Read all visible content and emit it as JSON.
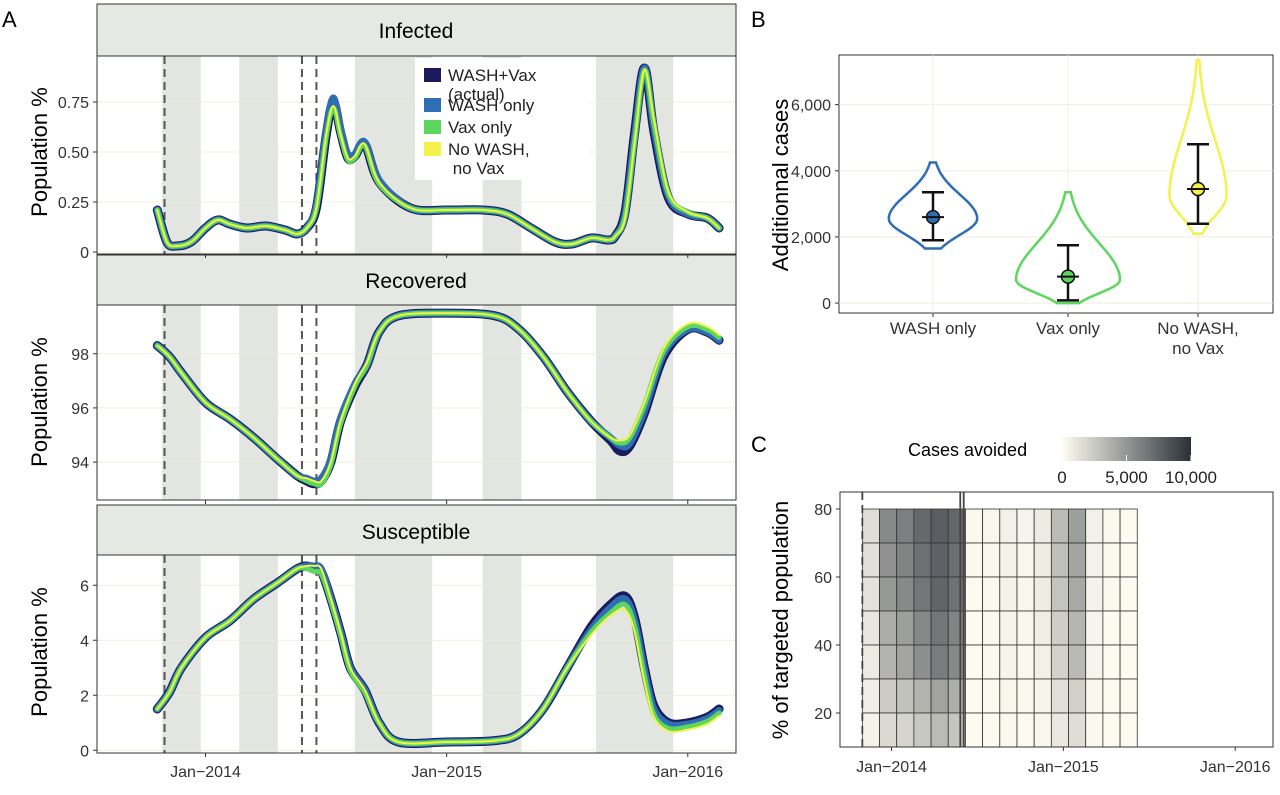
{
  "panel_letters": {
    "a": "A",
    "b": "B",
    "c": "C"
  },
  "colors": {
    "wash_vax": "#1a1a5c",
    "wash_only": "#2f6db5",
    "vax_only": "#5cd65c",
    "no_wash_no_vax": "#f2f24a",
    "season_shade": "#e3e5e0",
    "strip_fill": "#e6e8e3",
    "heat_low": "#fffdf2",
    "heat_high": "#2b3038"
  },
  "chart_data": [
    {
      "type": "line",
      "panel": "A",
      "facet": "Infected",
      "ylabel": "Population %",
      "xlabel": "",
      "x_ticks": [
        "Jan−2014",
        "Jan−2015",
        "Jan−2016"
      ],
      "x_tick_values": [
        2014.0,
        2015.0,
        2016.0
      ],
      "xlim": [
        2013.55,
        2016.2
      ],
      "ylim": [
        -0.01,
        0.98
      ],
      "y_ticks": [
        0,
        0.25,
        0.5,
        0.75
      ],
      "y_tick_labels": [
        "0",
        "0.25",
        "0.50",
        "0.75"
      ],
      "shaded_periods": [
        [
          2013.82,
          2013.98
        ],
        [
          2014.14,
          2014.3
        ],
        [
          2014.62,
          2014.94
        ],
        [
          2015.15,
          2015.31
        ],
        [
          2015.62,
          2015.94
        ]
      ],
      "intervention_lines": [
        2013.83,
        2014.4,
        2014.46
      ],
      "legend": {
        "position": "top-right",
        "entries": [
          {
            "label": "WASH+Vax\n(actual)",
            "color_key": "wash_vax"
          },
          {
            "label": "WASH only",
            "color_key": "wash_only"
          },
          {
            "label": "Vax only",
            "color_key": "vax_only"
          },
          {
            "label": "No WASH,\n no Vax",
            "color_key": "no_wash_no_vax"
          }
        ]
      },
      "x": [
        2013.8,
        2013.84,
        2013.88,
        2013.94,
        2014.0,
        2014.05,
        2014.1,
        2014.17,
        2014.25,
        2014.33,
        2014.38,
        2014.42,
        2014.46,
        2014.5,
        2014.53,
        2014.56,
        2014.59,
        2014.62,
        2014.66,
        2014.72,
        2014.85,
        2015.0,
        2015.15,
        2015.25,
        2015.35,
        2015.45,
        2015.52,
        2015.6,
        2015.67,
        2015.7,
        2015.74,
        2015.78,
        2015.82,
        2015.86,
        2015.92,
        2016.0,
        2016.08,
        2016.13
      ],
      "series": [
        {
          "name": "WASH+Vax\n(actual)",
          "values": [
            0.21,
            0.05,
            0.03,
            0.05,
            0.12,
            0.16,
            0.14,
            0.12,
            0.13,
            0.11,
            0.09,
            0.12,
            0.22,
            0.58,
            0.75,
            0.6,
            0.47,
            0.48,
            0.54,
            0.35,
            0.22,
            0.21,
            0.21,
            0.19,
            0.12,
            0.05,
            0.04,
            0.07,
            0.06,
            0.08,
            0.2,
            0.6,
            0.92,
            0.6,
            0.27,
            0.19,
            0.17,
            0.12
          ]
        },
        {
          "name": "WASH only",
          "values": [
            0.21,
            0.05,
            0.03,
            0.05,
            0.12,
            0.16,
            0.14,
            0.12,
            0.13,
            0.11,
            0.09,
            0.12,
            0.23,
            0.6,
            0.77,
            0.62,
            0.49,
            0.49,
            0.55,
            0.36,
            0.22,
            0.21,
            0.21,
            0.19,
            0.12,
            0.05,
            0.04,
            0.07,
            0.06,
            0.08,
            0.19,
            0.58,
            0.92,
            0.62,
            0.28,
            0.19,
            0.17,
            0.12
          ]
        },
        {
          "name": "Vax only",
          "values": [
            0.21,
            0.05,
            0.03,
            0.05,
            0.12,
            0.16,
            0.14,
            0.12,
            0.13,
            0.11,
            0.09,
            0.12,
            0.22,
            0.57,
            0.72,
            0.58,
            0.46,
            0.47,
            0.53,
            0.34,
            0.22,
            0.21,
            0.21,
            0.19,
            0.12,
            0.05,
            0.04,
            0.07,
            0.06,
            0.08,
            0.18,
            0.56,
            0.91,
            0.64,
            0.29,
            0.2,
            0.17,
            0.12
          ]
        },
        {
          "name": "No WASH,\n no Vax",
          "values": [
            0.21,
            0.05,
            0.03,
            0.05,
            0.12,
            0.16,
            0.14,
            0.12,
            0.13,
            0.11,
            0.09,
            0.12,
            0.22,
            0.58,
            0.73,
            0.59,
            0.47,
            0.48,
            0.54,
            0.35,
            0.22,
            0.21,
            0.21,
            0.19,
            0.12,
            0.05,
            0.04,
            0.07,
            0.06,
            0.08,
            0.17,
            0.55,
            0.91,
            0.66,
            0.3,
            0.2,
            0.17,
            0.12
          ]
        }
      ]
    },
    {
      "type": "line",
      "panel": "A",
      "facet": "Recovered",
      "ylabel": "Population %",
      "xlabel": "",
      "x_ticks": [
        "Jan−2014",
        "Jan−2015",
        "Jan−2016"
      ],
      "x_tick_values": [
        2014.0,
        2015.0,
        2016.0
      ],
      "xlim": [
        2013.55,
        2016.2
      ],
      "ylim": [
        92.6,
        99.8
      ],
      "y_ticks": [
        94,
        96,
        98
      ],
      "y_tick_labels": [
        "94",
        "96",
        "98"
      ],
      "shaded_periods": [
        [
          2013.82,
          2013.98
        ],
        [
          2014.14,
          2014.3
        ],
        [
          2014.62,
          2014.94
        ],
        [
          2015.15,
          2015.31
        ],
        [
          2015.62,
          2015.94
        ]
      ],
      "intervention_lines": [
        2013.83,
        2014.4,
        2014.46
      ],
      "x": [
        2013.8,
        2013.85,
        2013.9,
        2014.0,
        2014.1,
        2014.2,
        2014.3,
        2014.38,
        2014.42,
        2014.45,
        2014.48,
        2014.52,
        2014.56,
        2014.62,
        2014.67,
        2014.72,
        2014.8,
        2015.0,
        2015.2,
        2015.3,
        2015.4,
        2015.5,
        2015.6,
        2015.68,
        2015.72,
        2015.76,
        2015.82,
        2015.9,
        2016.0,
        2016.08,
        2016.13
      ],
      "series": [
        {
          "name": "WASH+Vax\n(actual)",
          "values": [
            98.3,
            97.9,
            97.3,
            96.2,
            95.6,
            94.9,
            94.1,
            93.5,
            93.3,
            93.2,
            93.3,
            94.0,
            95.5,
            96.8,
            97.6,
            98.8,
            99.4,
            99.5,
            99.4,
            98.9,
            97.9,
            96.6,
            95.5,
            94.8,
            94.4,
            94.6,
            95.8,
            97.9,
            98.9,
            98.8,
            98.5
          ]
        },
        {
          "name": "WASH only",
          "values": [
            98.3,
            97.9,
            97.3,
            96.2,
            95.6,
            94.9,
            94.1,
            93.5,
            93.4,
            93.3,
            93.4,
            94.1,
            95.6,
            96.9,
            97.6,
            98.8,
            99.4,
            99.5,
            99.4,
            98.9,
            97.9,
            96.6,
            95.5,
            94.9,
            94.6,
            94.7,
            95.9,
            98.0,
            98.9,
            98.8,
            98.5
          ]
        },
        {
          "name": "Vax only",
          "values": [
            98.3,
            97.9,
            97.3,
            96.2,
            95.6,
            94.9,
            94.1,
            93.5,
            93.3,
            93.2,
            93.2,
            93.9,
            95.4,
            96.8,
            97.6,
            98.8,
            99.4,
            99.5,
            99.4,
            98.9,
            97.9,
            96.6,
            95.5,
            94.9,
            94.7,
            94.9,
            96.1,
            98.1,
            99.0,
            98.9,
            98.6
          ]
        },
        {
          "name": "No WASH,\n no Vax",
          "values": [
            98.3,
            97.9,
            97.3,
            96.2,
            95.6,
            94.9,
            94.1,
            93.5,
            93.4,
            93.3,
            93.3,
            94.0,
            95.5,
            96.9,
            97.7,
            98.8,
            99.4,
            99.5,
            99.4,
            98.9,
            97.9,
            96.6,
            95.5,
            94.9,
            94.8,
            95.0,
            96.2,
            98.2,
            99.1,
            99.0,
            98.7
          ]
        }
      ]
    },
    {
      "type": "line",
      "panel": "A",
      "facet": "Susceptible",
      "ylabel": "Population %",
      "xlabel": "",
      "x_ticks": [
        "Jan−2014",
        "Jan−2015",
        "Jan−2016"
      ],
      "x_tick_values": [
        2014.0,
        2015.0,
        2016.0
      ],
      "xlim": [
        2013.55,
        2016.2
      ],
      "ylim": [
        -0.1,
        7.1
      ],
      "y_ticks": [
        0,
        2,
        4,
        6
      ],
      "y_tick_labels": [
        "0",
        "2",
        "4",
        "6"
      ],
      "shaded_periods": [
        [
          2013.82,
          2013.98
        ],
        [
          2014.14,
          2014.3
        ],
        [
          2014.62,
          2014.94
        ],
        [
          2015.15,
          2015.31
        ],
        [
          2015.62,
          2015.94
        ]
      ],
      "intervention_lines": [
        2013.83,
        2014.4,
        2014.46
      ],
      "x": [
        2013.8,
        2013.85,
        2013.9,
        2014.0,
        2014.1,
        2014.2,
        2014.3,
        2014.38,
        2014.42,
        2014.45,
        2014.48,
        2014.52,
        2014.56,
        2014.6,
        2014.66,
        2014.72,
        2014.8,
        2015.0,
        2015.2,
        2015.3,
        2015.4,
        2015.5,
        2015.6,
        2015.68,
        2015.74,
        2015.78,
        2015.82,
        2015.86,
        2015.92,
        2016.0,
        2016.08,
        2016.13
      ],
      "series": [
        {
          "name": "WASH+Vax\n(actual)",
          "values": [
            1.5,
            2.1,
            3.0,
            4.1,
            4.7,
            5.5,
            6.1,
            6.6,
            6.7,
            6.6,
            6.5,
            5.5,
            4.3,
            3.0,
            2.2,
            1.0,
            0.3,
            0.3,
            0.35,
            0.6,
            1.5,
            3.0,
            4.5,
            5.3,
            5.6,
            4.8,
            3.0,
            1.6,
            1.0,
            1.0,
            1.2,
            1.5
          ]
        },
        {
          "name": "WASH only",
          "values": [
            1.5,
            2.1,
            3.0,
            4.1,
            4.7,
            5.5,
            6.1,
            6.6,
            6.7,
            6.7,
            6.6,
            5.5,
            4.3,
            3.0,
            2.2,
            1.0,
            0.3,
            0.3,
            0.35,
            0.6,
            1.5,
            3.0,
            4.4,
            5.2,
            5.5,
            4.7,
            2.9,
            1.5,
            0.95,
            0.95,
            1.15,
            1.45
          ]
        },
        {
          "name": "Vax only",
          "values": [
            1.5,
            2.1,
            3.0,
            4.1,
            4.7,
            5.5,
            6.1,
            6.6,
            6.6,
            6.5,
            6.4,
            5.4,
            4.2,
            2.9,
            2.1,
            1.0,
            0.3,
            0.3,
            0.35,
            0.6,
            1.5,
            3.0,
            4.3,
            5.0,
            5.3,
            4.5,
            2.7,
            1.3,
            0.8,
            0.85,
            1.05,
            1.35
          ]
        },
        {
          "name": "No WASH,\n no Vax",
          "values": [
            1.5,
            2.1,
            3.0,
            4.1,
            4.7,
            5.5,
            6.1,
            6.6,
            6.7,
            6.7,
            6.6,
            5.5,
            4.3,
            3.0,
            2.2,
            1.0,
            0.3,
            0.3,
            0.35,
            0.6,
            1.5,
            3.0,
            4.2,
            4.9,
            5.1,
            4.3,
            2.5,
            1.2,
            0.7,
            0.75,
            0.95,
            1.25
          ]
        }
      ]
    },
    {
      "type": "violin",
      "panel": "B",
      "xlabel": "",
      "ylabel": "Additionnal cases",
      "ylim": [
        -300,
        7500
      ],
      "y_ticks": [
        0,
        2000,
        4000,
        6000
      ],
      "y_tick_labels": [
        "0",
        "2,000",
        "4,000",
        "6,000"
      ],
      "groups": [
        {
          "label": "WASH only",
          "color_key": "wash_only",
          "min": 1650,
          "max": 4250,
          "mode": 2550,
          "mean": 2600,
          "ci_low": 1900,
          "ci_high": 3350,
          "half_width_rel": 0.85
        },
        {
          "label": "Vax only",
          "color_key": "vax_only",
          "min": 0,
          "max": 3350,
          "mode": 700,
          "mean": 800,
          "ci_low": 80,
          "ci_high": 1750,
          "half_width_rel": 1.0
        },
        {
          "label": "No WASH,\nno Vax",
          "color_key": "no_wash_no_vax",
          "min": 2100,
          "max": 7350,
          "mode": 3250,
          "mean": 3450,
          "ci_low": 2400,
          "ci_high": 4800,
          "half_width_rel": 0.55
        }
      ]
    },
    {
      "type": "heatmap",
      "panel": "C",
      "xlabel": "",
      "ylabel": "% of targeted population",
      "legend_title": "Cases avoided",
      "legend_ticks": [
        0,
        5000,
        10000
      ],
      "legend_tick_labels": [
        "0",
        "5,000",
        "10,000"
      ],
      "x_ticks": [
        "Jan−2014",
        "Jan−2015",
        "Jan−2016"
      ],
      "x_tick_values": [
        2014.0,
        2015.0,
        2016.0
      ],
      "xlim": [
        2013.7,
        2016.22
      ],
      "y_ticks": [
        20,
        40,
        60,
        80
      ],
      "y_tick_labels": [
        "20",
        "40",
        "60",
        "80"
      ],
      "ylim": [
        10,
        85
      ],
      "intervention_lines": [
        2013.83,
        2014.4,
        2014.42
      ],
      "col_starts": [
        2013.83,
        2013.93,
        2014.03,
        2014.13,
        2014.23,
        2014.33,
        2014.43,
        2014.53,
        2014.63,
        2014.73,
        2014.83,
        2014.93,
        2015.03,
        2015.13,
        2015.23,
        2015.33
      ],
      "col_width": 0.1,
      "rows": [
        80,
        70,
        60,
        50,
        40,
        30,
        20
      ],
      "row_height": 10,
      "values": [
        [
          1500,
          5600,
          6200,
          7200,
          7800,
          7300,
          200,
          300,
          600,
          400,
          900,
          3200,
          4600,
          600,
          200,
          100
        ],
        [
          1400,
          5300,
          5900,
          6900,
          7600,
          7000,
          200,
          300,
          500,
          300,
          800,
          3000,
          4300,
          500,
          200,
          100
        ],
        [
          1300,
          4900,
          5600,
          6600,
          7400,
          6800,
          100,
          200,
          500,
          300,
          800,
          2800,
          4100,
          500,
          200,
          100
        ],
        [
          1100,
          3900,
          4600,
          5700,
          6600,
          5900,
          100,
          200,
          400,
          300,
          700,
          2300,
          3500,
          400,
          100,
          100
        ],
        [
          900,
          3600,
          4300,
          5400,
          6300,
          5600,
          100,
          200,
          400,
          200,
          600,
          2100,
          3300,
          400,
          100,
          100
        ],
        [
          700,
          2400,
          2900,
          3600,
          4400,
          3800,
          100,
          100,
          300,
          200,
          400,
          1400,
          2200,
          300,
          100,
          100
        ],
        [
          500,
          1700,
          2000,
          2600,
          3200,
          2700,
          100,
          100,
          200,
          100,
          300,
          1000,
          1500,
          200,
          100,
          100
        ]
      ]
    }
  ]
}
